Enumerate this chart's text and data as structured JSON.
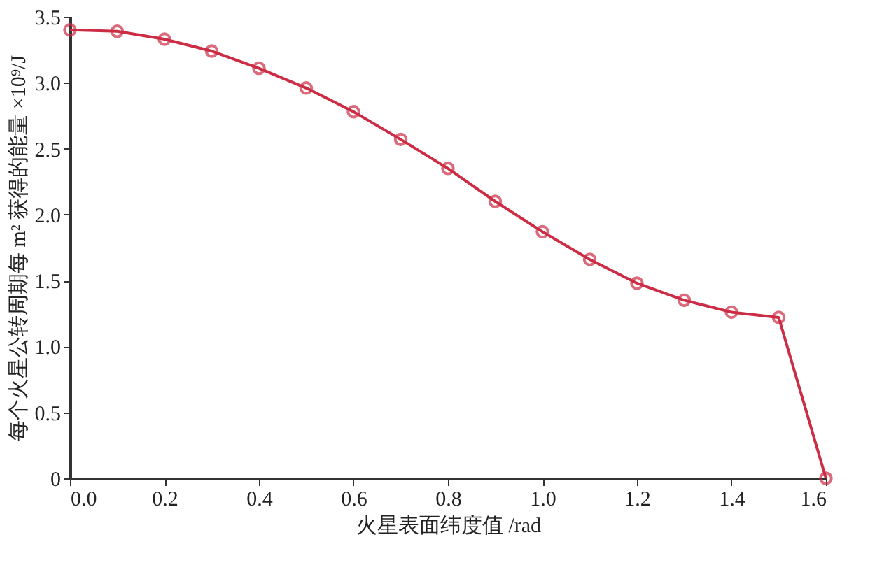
{
  "chart_data": {
    "type": "line",
    "xlabel": "火星表面纬度值 /rad",
    "ylabel": "每个火星公转周期每 m² 获得的能量 ×10⁹/J",
    "x": [
      0,
      0.1,
      0.2,
      0.3,
      0.4,
      0.5,
      0.6,
      0.7,
      0.8,
      0.9,
      1.0,
      1.1,
      1.2,
      1.3,
      1.4,
      1.5,
      1.6
    ],
    "series": [
      {
        "color": "#cc2c44",
        "values": [
          3.4,
          3.39,
          3.33,
          3.24,
          3.11,
          2.96,
          2.78,
          2.57,
          2.35,
          2.1,
          1.87,
          1.66,
          1.48,
          1.35,
          1.26,
          1.22,
          0
        ]
      }
    ],
    "xlim": [
      0,
      1.6
    ],
    "xticks": [
      {
        "value": 0,
        "label": "0.0"
      },
      0.2,
      0.4,
      0.6,
      0.8,
      {
        "value": 1,
        "label": "1.0"
      },
      1.2,
      1.4,
      1.6
    ],
    "ylim": [
      0,
      3.5
    ],
    "yticks": [
      0,
      0.5,
      {
        "value": 1,
        "label": "1.0"
      },
      1.5,
      {
        "value": 2,
        "label": "2.0"
      },
      2.5,
      {
        "value": 3,
        "label": "3.0"
      },
      3.5
    ],
    "marker": "circle",
    "line_style": "solid",
    "grid": false,
    "legend": false
  }
}
